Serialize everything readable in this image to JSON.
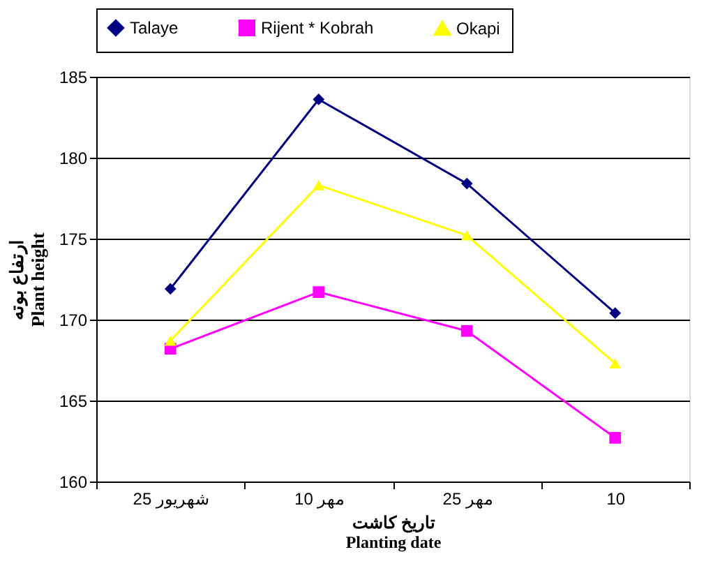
{
  "chart_data": {
    "type": "line",
    "xlabel": "تاریخ کاشت\nPlanting date",
    "ylabel": "ارتفاع بوته\nPlant height",
    "categories": [
      "25 شهریور",
      "10 مهر",
      "25 مهر",
      "10"
    ],
    "series": [
      {
        "name": "Talaye",
        "color": "#000080",
        "marker": "diamond",
        "values": [
          171.9,
          183.6,
          178.4,
          170.4
        ]
      },
      {
        "name": "Rijent * Kobrah",
        "color": "#ff00ff",
        "marker": "square",
        "values": [
          168.2,
          171.7,
          169.3,
          162.7
        ]
      },
      {
        "name": "Okapi",
        "color": "#ffff00",
        "marker": "triangle",
        "values": [
          168.7,
          178.3,
          175.2,
          167.3
        ]
      }
    ],
    "ylim": [
      160,
      185
    ],
    "yticks": [
      160,
      165,
      170,
      175,
      180,
      185
    ],
    "grid": "y",
    "legend": "top",
    "line_style": "solid"
  }
}
